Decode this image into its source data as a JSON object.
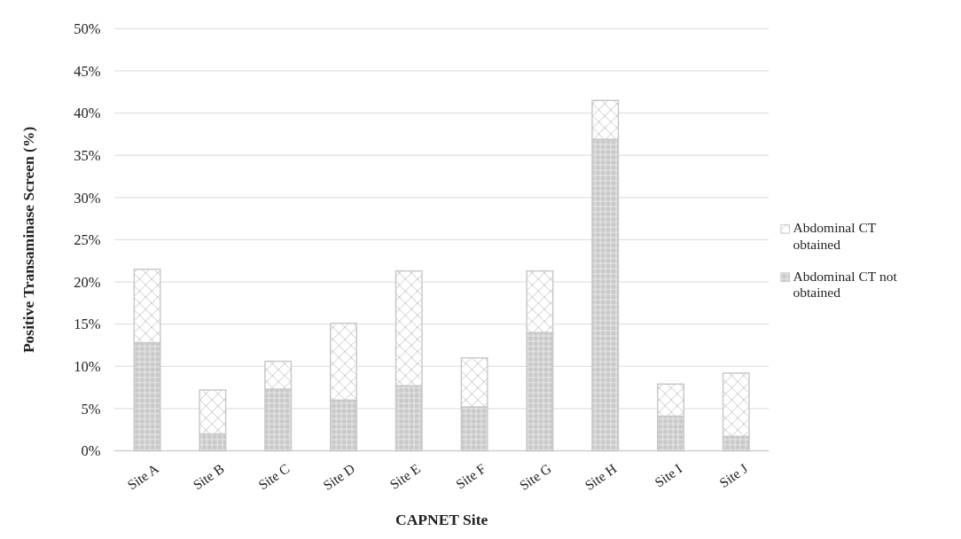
{
  "chart_data": {
    "type": "bar",
    "stacked": true,
    "xlabel": "CAPNET Site",
    "ylabel": "Positive Transaminase  Screen (%)",
    "categories": [
      "Site A",
      "Site B",
      "Site C",
      "Site D",
      "Site E",
      "Site F",
      "Site G",
      "Site H",
      "Site I",
      "Site J"
    ],
    "series": [
      {
        "name": "Abdominal CT not obtained",
        "color": "#c8c8c8",
        "values": [
          12.8,
          2.0,
          7.3,
          6.0,
          7.7,
          5.2,
          14.0,
          36.9,
          4.1,
          1.7
        ]
      },
      {
        "name": "Abdominal CT obtained",
        "color": "#c8c8c8",
        "values": [
          8.7,
          5.2,
          3.3,
          9.1,
          13.6,
          5.8,
          7.3,
          4.6,
          3.8,
          7.5
        ]
      }
    ],
    "ylim": [
      0,
      50
    ],
    "yticks": [
      {
        "value": 0,
        "label": "0%"
      },
      {
        "value": 5,
        "label": "5%"
      },
      {
        "value": 10,
        "label": "10%"
      },
      {
        "value": 15,
        "label": "15%"
      },
      {
        "value": 20,
        "label": "20%"
      },
      {
        "value": 25,
        "label": "25%"
      },
      {
        "value": 30,
        "label": "30%"
      },
      {
        "value": 35,
        "label": "35%"
      },
      {
        "value": 40,
        "label": "40%"
      },
      {
        "value": 45,
        "label": "45%"
      },
      {
        "value": 50,
        "label": "50%"
      }
    ],
    "grid": "y",
    "legend": "right"
  }
}
